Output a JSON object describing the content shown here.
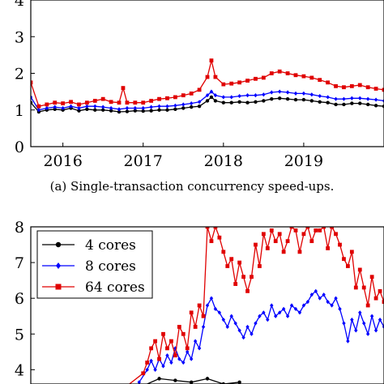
{
  "chart_data": [
    {
      "type": "line",
      "title": "",
      "caption": "(a) Single-transaction concurrency speed-ups.",
      "xlabel": "",
      "ylabel": "",
      "x_ticks": [
        "2016",
        "2017",
        "2018",
        "2019"
      ],
      "y_ticks": [
        "0",
        "1",
        "2",
        "3",
        "4"
      ],
      "xlim": [
        2015.6,
        2020.0
      ],
      "ylim": [
        0,
        4
      ],
      "grid": false,
      "legend": "none",
      "series": [
        {
          "color": "#000000",
          "marker": "circle",
          "x": [
            2015.6,
            2015.7,
            2015.8,
            2015.9,
            2016.0,
            2016.1,
            2016.2,
            2016.3,
            2016.4,
            2016.5,
            2016.6,
            2016.7,
            2016.8,
            2016.9,
            2017.0,
            2017.1,
            2017.2,
            2017.3,
            2017.4,
            2017.5,
            2017.6,
            2017.7,
            2017.8,
            2017.85,
            2017.9,
            2018.0,
            2018.1,
            2018.2,
            2018.3,
            2018.4,
            2018.5,
            2018.6,
            2018.7,
            2018.8,
            2018.9,
            2019.0,
            2019.1,
            2019.2,
            2019.3,
            2019.4,
            2019.5,
            2019.6,
            2019.7,
            2019.8,
            2019.9,
            2020.0
          ],
          "y": [
            1.2,
            0.95,
            1.0,
            1.02,
            1.0,
            1.05,
            0.98,
            1.02,
            1.0,
            1.0,
            0.98,
            0.95,
            0.96,
            0.98,
            0.97,
            0.98,
            1.0,
            1.0,
            1.02,
            1.05,
            1.08,
            1.1,
            1.25,
            1.35,
            1.25,
            1.2,
            1.2,
            1.22,
            1.2,
            1.22,
            1.25,
            1.3,
            1.32,
            1.3,
            1.28,
            1.28,
            1.25,
            1.22,
            1.2,
            1.15,
            1.15,
            1.18,
            1.18,
            1.15,
            1.12,
            1.1
          ]
        },
        {
          "color": "#0000ff",
          "marker": "diamond",
          "x": [
            2015.6,
            2015.7,
            2015.8,
            2015.9,
            2016.0,
            2016.1,
            2016.2,
            2016.3,
            2016.4,
            2016.5,
            2016.6,
            2016.7,
            2016.8,
            2016.9,
            2017.0,
            2017.1,
            2017.2,
            2017.3,
            2017.4,
            2017.5,
            2017.6,
            2017.7,
            2017.8,
            2017.85,
            2017.9,
            2018.0,
            2018.1,
            2018.2,
            2018.3,
            2018.4,
            2018.5,
            2018.6,
            2018.7,
            2018.8,
            2018.9,
            2019.0,
            2019.1,
            2019.2,
            2019.3,
            2019.4,
            2019.5,
            2019.6,
            2019.7,
            2019.8,
            2019.9,
            2020.0
          ],
          "y": [
            1.35,
            1.0,
            1.05,
            1.08,
            1.05,
            1.1,
            1.05,
            1.1,
            1.1,
            1.08,
            1.05,
            1.02,
            1.05,
            1.05,
            1.05,
            1.08,
            1.1,
            1.1,
            1.12,
            1.15,
            1.18,
            1.22,
            1.4,
            1.5,
            1.4,
            1.35,
            1.35,
            1.38,
            1.4,
            1.4,
            1.42,
            1.48,
            1.5,
            1.48,
            1.45,
            1.45,
            1.42,
            1.38,
            1.35,
            1.3,
            1.3,
            1.32,
            1.32,
            1.3,
            1.28,
            1.25
          ]
        },
        {
          "color": "#e00000",
          "marker": "square",
          "x": [
            2015.6,
            2015.7,
            2015.8,
            2015.9,
            2016.0,
            2016.1,
            2016.2,
            2016.3,
            2016.4,
            2016.5,
            2016.6,
            2016.7,
            2016.75,
            2016.8,
            2016.9,
            2017.0,
            2017.1,
            2017.2,
            2017.3,
            2017.4,
            2017.5,
            2017.6,
            2017.7,
            2017.8,
            2017.85,
            2017.9,
            2018.0,
            2018.1,
            2018.2,
            2018.3,
            2018.4,
            2018.5,
            2018.6,
            2018.7,
            2018.8,
            2018.9,
            2019.0,
            2019.1,
            2019.2,
            2019.3,
            2019.4,
            2019.5,
            2019.6,
            2019.7,
            2019.8,
            2019.9,
            2020.0
          ],
          "y": [
            1.75,
            1.1,
            1.15,
            1.2,
            1.18,
            1.22,
            1.15,
            1.2,
            1.25,
            1.3,
            1.22,
            1.2,
            1.6,
            1.2,
            1.2,
            1.2,
            1.25,
            1.3,
            1.32,
            1.35,
            1.4,
            1.45,
            1.55,
            1.9,
            2.35,
            1.9,
            1.7,
            1.72,
            1.75,
            1.8,
            1.85,
            1.88,
            2.0,
            2.05,
            2.0,
            1.95,
            1.92,
            1.88,
            1.82,
            1.75,
            1.65,
            1.62,
            1.65,
            1.68,
            1.62,
            1.58,
            1.55
          ]
        }
      ]
    },
    {
      "type": "line",
      "title": "",
      "xlabel": "",
      "ylabel": "",
      "y_ticks": [
        "4",
        "5",
        "6",
        "7",
        "8"
      ],
      "xlim": [
        2015.6,
        2020.0
      ],
      "ylim": [
        3.6,
        8
      ],
      "grid": false,
      "legend": "top-left",
      "series": [
        {
          "name": "4 cores",
          "color": "#000000",
          "marker": "circle",
          "x": [
            2017.0,
            2017.2,
            2017.4,
            2017.6,
            2017.8,
            2018.0,
            2018.2
          ],
          "y": [
            3.55,
            3.75,
            3.7,
            3.65,
            3.75,
            3.6,
            3.65
          ]
        },
        {
          "name": "8 cores",
          "color": "#0000ff",
          "marker": "diamond",
          "x": [
            2016.95,
            2017.05,
            2017.1,
            2017.15,
            2017.2,
            2017.25,
            2017.3,
            2017.35,
            2017.4,
            2017.45,
            2017.5,
            2017.55,
            2017.6,
            2017.65,
            2017.7,
            2017.75,
            2017.8,
            2017.85,
            2017.9,
            2017.95,
            2018.0,
            2018.05,
            2018.1,
            2018.15,
            2018.2,
            2018.25,
            2018.3,
            2018.35,
            2018.4,
            2018.45,
            2018.5,
            2018.55,
            2018.6,
            2018.65,
            2018.7,
            2018.75,
            2018.8,
            2018.85,
            2018.9,
            2018.95,
            2019.0,
            2019.05,
            2019.1,
            2019.15,
            2019.2,
            2019.25,
            2019.3,
            2019.35,
            2019.4,
            2019.45,
            2019.5,
            2019.55,
            2019.6,
            2019.65,
            2019.7,
            2019.75,
            2019.8,
            2019.85,
            2019.9,
            2019.95,
            2020.0
          ],
          "y": [
            3.65,
            4.0,
            4.25,
            4.0,
            4.3,
            4.1,
            4.4,
            4.2,
            4.6,
            4.3,
            4.2,
            4.5,
            4.3,
            4.8,
            4.6,
            5.2,
            5.8,
            6.0,
            5.7,
            5.6,
            5.4,
            5.2,
            5.5,
            5.3,
            5.1,
            4.9,
            5.2,
            5.0,
            5.3,
            5.5,
            5.6,
            5.4,
            5.8,
            5.5,
            5.6,
            5.7,
            5.5,
            5.8,
            5.7,
            5.6,
            5.8,
            5.9,
            6.1,
            6.2,
            6.0,
            6.1,
            5.9,
            5.8,
            6.0,
            5.7,
            5.3,
            4.8,
            5.4,
            5.1,
            5.6,
            5.3,
            5.0,
            5.5,
            5.1,
            5.4,
            5.2
          ]
        },
        {
          "name": "64 cores",
          "color": "#e00000",
          "marker": "square",
          "x": [
            2016.8,
            2017.0,
            2017.05,
            2017.1,
            2017.15,
            2017.2,
            2017.25,
            2017.3,
            2017.35,
            2017.4,
            2017.45,
            2017.5,
            2017.55,
            2017.6,
            2017.65,
            2017.7,
            2017.75,
            2017.8,
            2017.85,
            2017.9,
            2017.95,
            2018.0,
            2018.05,
            2018.1,
            2018.15,
            2018.2,
            2018.25,
            2018.3,
            2018.35,
            2018.4,
            2018.45,
            2018.5,
            2018.55,
            2018.6,
            2018.65,
            2018.7,
            2018.75,
            2018.8,
            2018.85,
            2018.9,
            2018.95,
            2019.0,
            2019.05,
            2019.1,
            2019.15,
            2019.2,
            2019.25,
            2019.3,
            2019.35,
            2019.4,
            2019.45,
            2019.5,
            2019.55,
            2019.6,
            2019.65,
            2019.7,
            2019.75,
            2019.8,
            2019.85,
            2019.9,
            2019.95,
            2020.0
          ],
          "y": [
            3.55,
            3.9,
            4.2,
            4.6,
            4.8,
            4.3,
            5.0,
            4.6,
            4.8,
            4.4,
            5.2,
            5.0,
            4.6,
            5.6,
            5.2,
            5.8,
            5.5,
            8.0,
            7.6,
            8.0,
            7.7,
            7.3,
            6.9,
            7.1,
            6.4,
            7.0,
            6.6,
            6.2,
            6.6,
            7.5,
            6.9,
            7.8,
            7.4,
            7.9,
            7.6,
            7.8,
            7.3,
            7.6,
            8.0,
            7.9,
            7.3,
            7.8,
            8.0,
            7.6,
            7.9,
            7.9,
            8.0,
            7.4,
            8.0,
            7.8,
            7.5,
            7.1,
            6.9,
            7.3,
            6.3,
            6.8,
            6.3,
            5.8,
            6.6,
            6.0,
            6.2,
            5.9
          ]
        }
      ]
    }
  ]
}
